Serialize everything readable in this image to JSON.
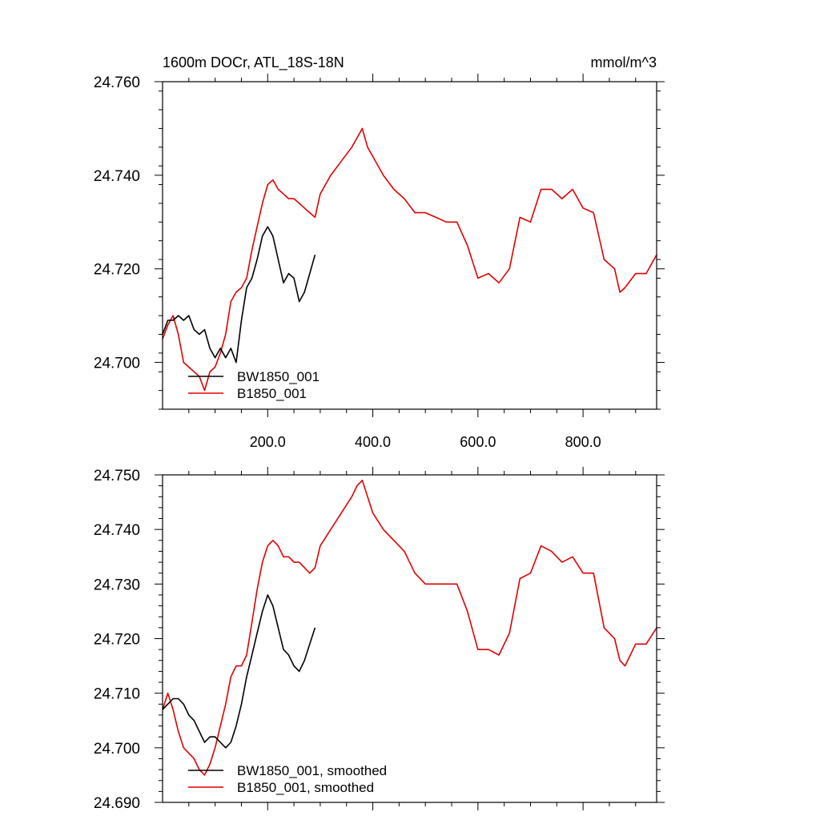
{
  "colors": {
    "black_series": "#000000",
    "red_series": "#e00000",
    "axis": "#000000"
  },
  "chart_data": [
    {
      "type": "line",
      "title": "1600m DOCr, ATL_18S-18N",
      "units": "mmol/m^3",
      "xlim": [
        0,
        940
      ],
      "ylim": [
        24.69,
        24.76
      ],
      "xticks": [
        "200.0",
        "400.0",
        "600.0",
        "800.0"
      ],
      "xtick_values": [
        200,
        400,
        600,
        800
      ],
      "yticks": [
        "24.700",
        "24.720",
        "24.740",
        "24.760"
      ],
      "ytick_values": [
        24.7,
        24.72,
        24.74,
        24.76
      ],
      "legend": "bottom-left",
      "series": [
        {
          "name": "BW1850_001",
          "color": "#000000",
          "x": [
            0,
            10,
            20,
            30,
            40,
            50,
            60,
            70,
            80,
            90,
            100,
            110,
            120,
            130,
            140,
            150,
            160,
            170,
            180,
            190,
            200,
            210,
            220,
            230,
            240,
            250,
            260,
            270,
            280,
            290
          ],
          "y": [
            24.706,
            24.709,
            24.709,
            24.71,
            24.709,
            24.71,
            24.707,
            24.706,
            24.707,
            24.703,
            24.701,
            24.703,
            24.701,
            24.703,
            24.7,
            24.709,
            24.716,
            24.718,
            24.722,
            24.727,
            24.729,
            24.727,
            24.722,
            24.717,
            24.719,
            24.718,
            24.713,
            24.715,
            24.719,
            24.723
          ]
        },
        {
          "name": "B1850_001",
          "color": "#e00000",
          "x": [
            0,
            10,
            20,
            30,
            40,
            50,
            60,
            70,
            80,
            90,
            100,
            110,
            120,
            130,
            140,
            150,
            160,
            170,
            180,
            190,
            200,
            210,
            220,
            230,
            240,
            250,
            260,
            270,
            280,
            290,
            300,
            320,
            340,
            360,
            370,
            380,
            390,
            400,
            420,
            440,
            460,
            480,
            500,
            520,
            540,
            560,
            580,
            600,
            620,
            640,
            660,
            680,
            700,
            720,
            740,
            760,
            780,
            800,
            820,
            840,
            860,
            870,
            880,
            900,
            920,
            940
          ],
          "y": [
            24.705,
            24.708,
            24.71,
            24.706,
            24.7,
            24.699,
            24.698,
            24.697,
            24.694,
            24.698,
            24.699,
            24.702,
            24.706,
            24.713,
            24.715,
            24.716,
            24.718,
            24.724,
            24.729,
            24.734,
            24.738,
            24.739,
            24.737,
            24.736,
            24.735,
            24.735,
            24.734,
            24.733,
            24.732,
            24.731,
            24.736,
            24.74,
            24.743,
            24.746,
            24.748,
            24.75,
            24.746,
            24.744,
            24.74,
            24.737,
            24.735,
            24.732,
            24.732,
            24.731,
            24.73,
            24.73,
            24.725,
            24.718,
            24.719,
            24.717,
            24.72,
            24.731,
            24.73,
            24.737,
            24.737,
            24.735,
            24.737,
            24.733,
            24.732,
            24.722,
            24.72,
            24.715,
            24.716,
            24.719,
            24.719,
            24.723
          ]
        }
      ]
    },
    {
      "type": "line",
      "xlim": [
        0,
        940
      ],
      "ylim": [
        24.69,
        24.75
      ],
      "xtick_values": [
        200,
        400,
        600,
        800
      ],
      "yticks": [
        "24.690",
        "24.700",
        "24.710",
        "24.720",
        "24.730",
        "24.740",
        "24.750"
      ],
      "ytick_values": [
        24.69,
        24.7,
        24.71,
        24.72,
        24.73,
        24.74,
        24.75
      ],
      "legend": "bottom-left",
      "series": [
        {
          "name": "BW1850_001, smoothed",
          "color": "#000000",
          "x": [
            0,
            10,
            20,
            30,
            40,
            50,
            60,
            70,
            80,
            90,
            100,
            110,
            120,
            130,
            140,
            150,
            160,
            170,
            180,
            190,
            200,
            210,
            220,
            230,
            240,
            250,
            260,
            270,
            280,
            290
          ],
          "y": [
            24.707,
            24.708,
            24.709,
            24.709,
            24.708,
            24.706,
            24.705,
            24.703,
            24.701,
            24.702,
            24.702,
            24.701,
            24.7,
            24.701,
            24.704,
            24.708,
            24.713,
            24.717,
            24.721,
            24.725,
            24.728,
            24.726,
            24.722,
            24.718,
            24.717,
            24.715,
            24.714,
            24.716,
            24.719,
            24.722
          ]
        },
        {
          "name": "B1850_001, smoothed",
          "color": "#e00000",
          "x": [
            0,
            10,
            20,
            30,
            40,
            50,
            60,
            70,
            80,
            90,
            100,
            110,
            120,
            130,
            140,
            150,
            160,
            170,
            180,
            190,
            200,
            210,
            220,
            230,
            240,
            250,
            260,
            270,
            280,
            290,
            300,
            320,
            340,
            360,
            370,
            380,
            390,
            400,
            420,
            440,
            460,
            480,
            500,
            520,
            540,
            560,
            580,
            600,
            620,
            640,
            660,
            680,
            700,
            720,
            740,
            760,
            780,
            800,
            820,
            840,
            860,
            870,
            880,
            900,
            920,
            940
          ],
          "y": [
            24.707,
            24.71,
            24.707,
            24.703,
            24.7,
            24.699,
            24.698,
            24.696,
            24.695,
            24.697,
            24.7,
            24.704,
            24.708,
            24.713,
            24.715,
            24.715,
            24.717,
            24.723,
            24.729,
            24.734,
            24.737,
            24.738,
            24.737,
            24.735,
            24.735,
            24.734,
            24.734,
            24.733,
            24.732,
            24.733,
            24.737,
            24.74,
            24.743,
            24.746,
            24.748,
            24.749,
            24.746,
            24.743,
            24.74,
            24.738,
            24.736,
            24.732,
            24.73,
            24.73,
            24.73,
            24.73,
            24.725,
            24.718,
            24.718,
            24.717,
            24.721,
            24.731,
            24.732,
            24.737,
            24.736,
            24.734,
            24.735,
            24.732,
            24.732,
            24.722,
            24.72,
            24.716,
            24.715,
            24.719,
            24.719,
            24.722
          ]
        }
      ]
    }
  ]
}
